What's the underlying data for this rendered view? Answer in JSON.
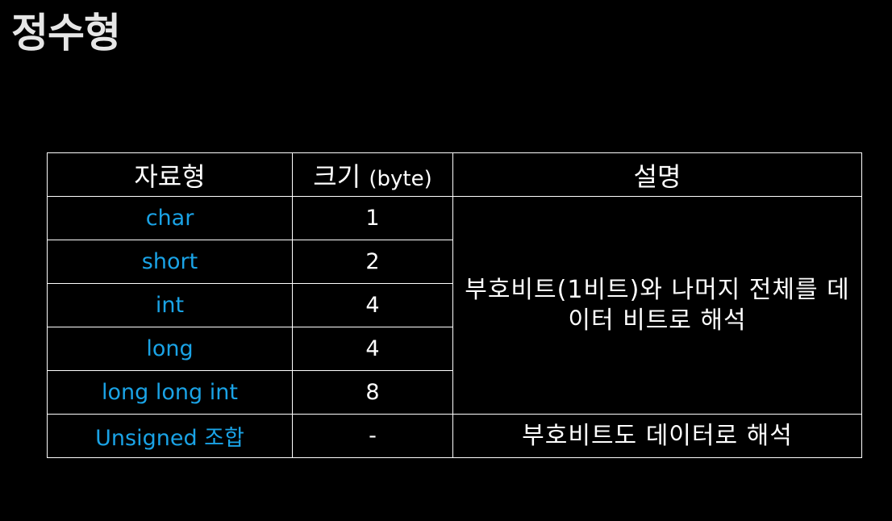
{
  "title": "정수형",
  "table": {
    "headers": {
      "type": "자료형",
      "size_main": "크기",
      "size_unit": "(byte)",
      "description": "설명"
    },
    "rows": [
      {
        "type": "char",
        "size": "1"
      },
      {
        "type": "short",
        "size": "2"
      },
      {
        "type": "int",
        "size": "4"
      },
      {
        "type": "long",
        "size": "4"
      },
      {
        "type": "long long int",
        "size": "8"
      },
      {
        "type": "Unsigned 조합",
        "size": "-"
      }
    ],
    "signed_description": "부호비트(1비트)와 나머지 전체를 데이터 비트로 해석",
    "unsigned_description": "부호비트도 데이터로 해석"
  },
  "colors": {
    "background": "#000000",
    "type_name": "#1aa3e6",
    "text": "#ffffff"
  }
}
